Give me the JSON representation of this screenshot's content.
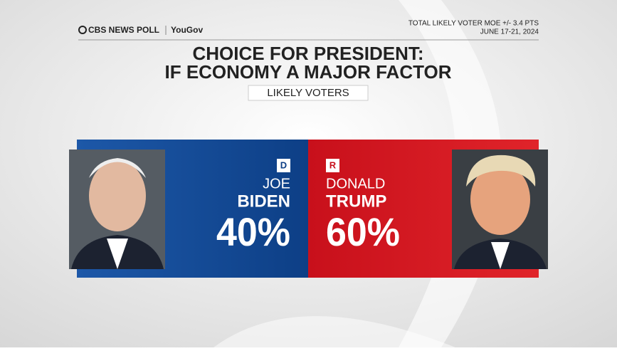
{
  "header": {
    "brand": "CBS NEWS POLL",
    "partner": "YouGov",
    "moe": "TOTAL LIKELY VOTER MOE +/- 3.4 PTS",
    "dates": "JUNE 17-21, 2024"
  },
  "title": [
    "CHOICE FOR PRESIDENT:",
    "IF ECONOMY A MAJOR FACTOR"
  ],
  "subtitle": "LIKELY VOTERS",
  "candidates": [
    {
      "party": "D",
      "first": "JOE",
      "last": "BIDEN",
      "share": "40%"
    },
    {
      "party": "R",
      "first": "DONALD",
      "last": "TRUMP",
      "share": "60%"
    }
  ]
}
